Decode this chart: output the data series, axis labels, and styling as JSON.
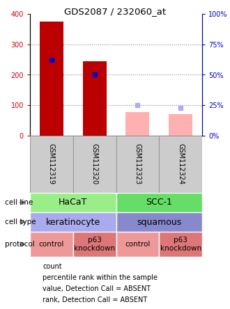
{
  "title": "GDS2087 / 232060_at",
  "samples": [
    "GSM112319",
    "GSM112320",
    "GSM112323",
    "GSM112324"
  ],
  "bar_values": [
    375,
    245,
    0,
    0
  ],
  "bar_values_absent": [
    0,
    0,
    78,
    70
  ],
  "rank_values_present": [
    62.5,
    50.0,
    0,
    0
  ],
  "rank_values_absent": [
    0,
    0,
    25,
    23
  ],
  "rank_color_present": "#0000cc",
  "rank_color_absent": "#aaaaff",
  "bar_color_present": "#bb0000",
  "bar_color_absent": "#ffb0b0",
  "ylim_left": [
    0,
    400
  ],
  "ylim_right": [
    0,
    100
  ],
  "yticks_left": [
    0,
    100,
    200,
    300,
    400
  ],
  "ytick_labels_right": [
    "0%",
    "25%",
    "50%",
    "75%",
    "100%"
  ],
  "yticks_right": [
    0,
    25,
    50,
    75,
    100
  ],
  "cell_line_data": [
    {
      "label": "HaCaT",
      "span": [
        0,
        2
      ],
      "color": "#99ee88"
    },
    {
      "label": "SCC-1",
      "span": [
        2,
        4
      ],
      "color": "#66dd66"
    }
  ],
  "cell_type_data": [
    {
      "label": "keratinocyte",
      "span": [
        0,
        2
      ],
      "color": "#aaaaee"
    },
    {
      "label": "squamous",
      "span": [
        2,
        4
      ],
      "color": "#8888cc"
    }
  ],
  "protocol_data": [
    {
      "label": "control",
      "span": [
        0,
        1
      ],
      "color": "#ee9999"
    },
    {
      "label": "p63\nknockdown",
      "span": [
        1,
        2
      ],
      "color": "#dd7777"
    },
    {
      "label": "control",
      "span": [
        2,
        3
      ],
      "color": "#ee9999"
    },
    {
      "label": "p63\nknockdown",
      "span": [
        3,
        4
      ],
      "color": "#dd7777"
    }
  ],
  "row_labels": [
    "cell line",
    "cell type",
    "protocol"
  ],
  "legend_items": [
    {
      "color": "#bb0000",
      "label": "count"
    },
    {
      "color": "#0000cc",
      "label": "percentile rank within the sample"
    },
    {
      "color": "#ffb0b0",
      "label": "value, Detection Call = ABSENT"
    },
    {
      "color": "#bbbbff",
      "label": "rank, Detection Call = ABSENT"
    }
  ],
  "bg_color": "#ffffff",
  "grid_color": "#888888",
  "label_color_left": "#cc0000",
  "label_color_right": "#0000cc",
  "sample_box_color": "#cccccc",
  "sample_box_edge": "#999999"
}
